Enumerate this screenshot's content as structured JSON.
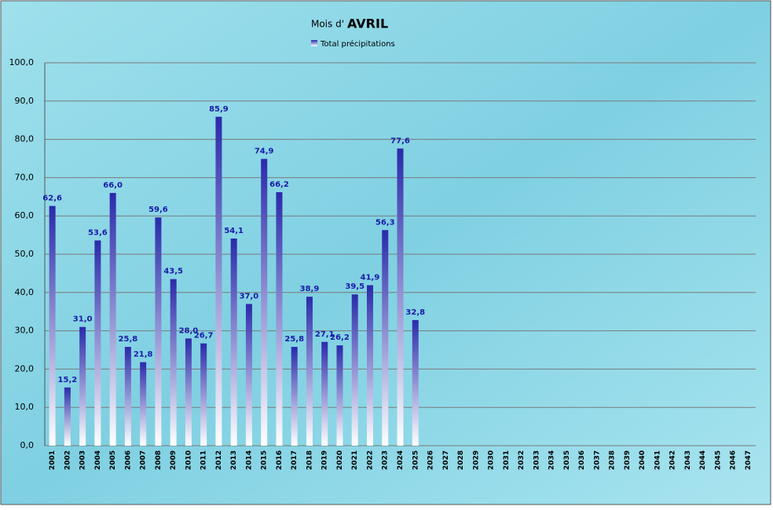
{
  "chart_data": {
    "type": "bar",
    "title": [
      "Mois d'",
      "AVRIL"
    ],
    "categories": [
      "2001",
      "2002",
      "2003",
      "2004",
      "2005",
      "2006",
      "2007",
      "2008",
      "2009",
      "2010",
      "2011",
      "2012",
      "2013",
      "2014",
      "2015",
      "2016",
      "2017",
      "2018",
      "2019",
      "2020",
      "2021",
      "2022",
      "2023",
      "2024",
      "2025",
      "2026",
      "2027",
      "2028",
      "2029",
      "2030",
      "2031",
      "2032",
      "2033",
      "2034",
      "2035",
      "2036",
      "2037",
      "2038",
      "2039",
      "2040",
      "2041",
      "2042",
      "2043",
      "2044",
      "2045",
      "2046",
      "2047"
    ],
    "series": [
      {
        "name": "Total précipitations",
        "color": "#2a2aaa",
        "values": [
          62.6,
          15.2,
          31.0,
          53.6,
          66.0,
          25.8,
          21.8,
          59.6,
          43.5,
          28.0,
          26.7,
          85.9,
          54.1,
          37.0,
          74.9,
          66.2,
          25.8,
          38.9,
          27.1,
          26.2,
          39.5,
          41.9,
          56.3,
          77.6,
          32.8,
          null,
          null,
          null,
          null,
          null,
          null,
          null,
          null,
          null,
          null,
          null,
          null,
          null,
          null,
          null,
          null,
          null,
          null,
          null,
          null,
          null,
          null
        ],
        "value_labels": [
          "62,6",
          "15,2",
          "31,0",
          "53,6",
          "66,0",
          "25,8",
          "21,8",
          "59,6",
          "43,5",
          "28,0",
          "26,7",
          "85,9",
          "54,1",
          "37,0",
          "74,9",
          "66,2",
          "25,8",
          "38,9",
          "27,1",
          "26,2",
          "39,5",
          "41,9",
          "56,3",
          "77,6",
          "32,8",
          null,
          null,
          null,
          null,
          null,
          null,
          null,
          null,
          null,
          null,
          null,
          null,
          null,
          null,
          null,
          null,
          null,
          null,
          null,
          null,
          null,
          null
        ]
      }
    ],
    "ylim": [
      0,
      100
    ],
    "yticks": [
      {
        "value": 0,
        "label": "0,0"
      },
      {
        "value": 10,
        "label": "10,0"
      },
      {
        "value": 20,
        "label": "20,0"
      },
      {
        "value": 30,
        "label": "30,0"
      },
      {
        "value": 40,
        "label": "40,0"
      },
      {
        "value": 50,
        "label": "50,0"
      },
      {
        "value": 60,
        "label": "60,0"
      },
      {
        "value": 70,
        "label": "70,0"
      },
      {
        "value": 80,
        "label": "80,0"
      },
      {
        "value": 90,
        "label": "90,0"
      },
      {
        "value": 100,
        "label": "100,0"
      }
    ],
    "grid": true
  }
}
